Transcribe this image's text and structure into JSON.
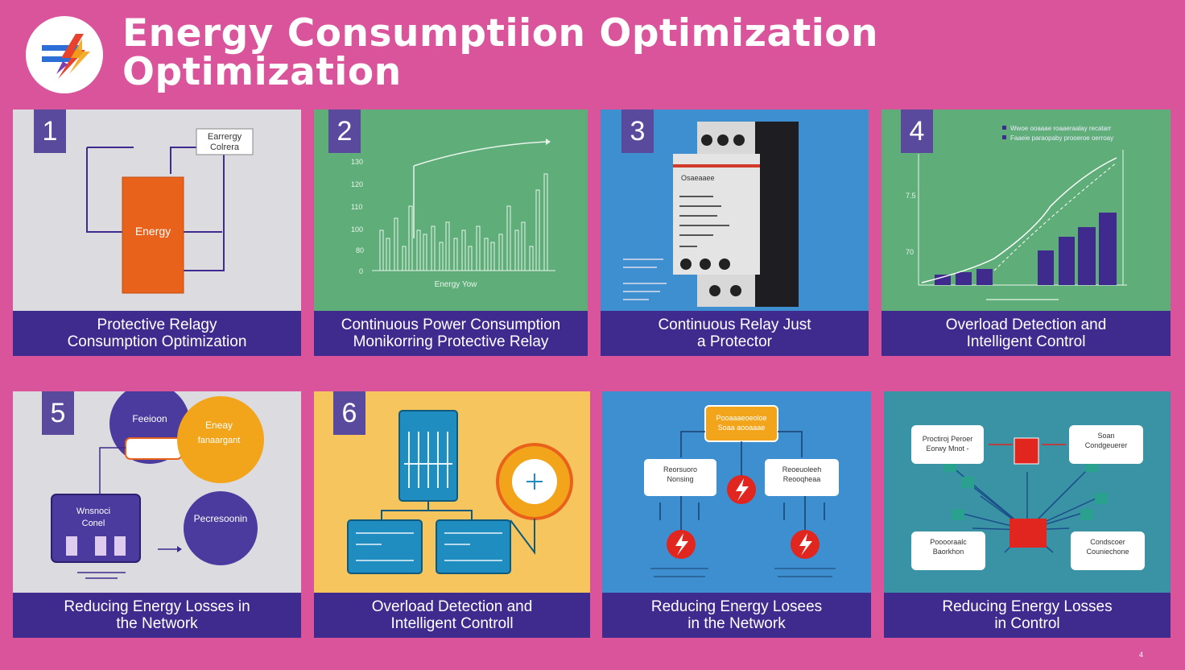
{
  "header": {
    "title_line1": "Energy Consumptiion Optimization",
    "title_line2": "Optimization"
  },
  "colors": {
    "background": "#d9549a",
    "caption_bar": "#3f2b8e",
    "card1": "#dcdbe0",
    "card2": "#5fad78",
    "card3": "#3d8fd0",
    "card4": "#5fad78",
    "card5": "#dcdbe0",
    "card6": "#f6c55d",
    "card7": "#3d8fd0",
    "card8": "#3a93a5"
  },
  "cards": [
    {
      "number": "1",
      "caption_line1": "Protective Relagy",
      "caption_line2": "Consumption   Optimization",
      "block_label": "Energy",
      "callout_line1": "Earrergy",
      "callout_line2": "Colrera",
      "icon": "battery-block-icon"
    },
    {
      "number": "2",
      "caption_line1": "Continuous Power Consumption",
      "caption_line2": "Monikorring Protective Relay",
      "axis_label": "Energy Yow",
      "icon": "bar-chart-icon"
    },
    {
      "number": "3",
      "caption_line1": "Continuous Relay Just",
      "caption_line2": "a Protector",
      "device_label": "Osaeaaee",
      "icon": "relay-device-icon"
    },
    {
      "number": "4",
      "caption_line1": "Overload Detection and",
      "caption_line2": "Intelligent Control",
      "legend1": "Wwoe ooaaae roaaeraalay recatarr",
      "legend2": "Faaeie paraopaby prooeroe oerroay",
      "icon": "trend-chart-icon"
    },
    {
      "number": "5",
      "caption_line1": "Reducing Energy Losses in",
      "caption_line2": "the Network",
      "bubble1": "Feeioon",
      "bubble2_line1": "Eneay",
      "bubble2_line2": "fanaargant",
      "bubble3": "Pecresoonin",
      "box_line1": "Wnsnoci",
      "box_line2": "Conel",
      "icon": "network-diagram-icon"
    },
    {
      "number": "6",
      "caption_line1": "Overload Detection  and",
      "caption_line2": "Intelligent Controll",
      "icon": "circuit-panel-icon"
    },
    {
      "number": "",
      "caption_line1": "Reducing Energy Losees",
      "caption_line2": "in the Network",
      "top_box_line1": "Pooaaaeoeoloe",
      "top_box_line2": "Soaa aooaaae",
      "left_box_line1": "Reorsuoro",
      "left_box_line2": "Nonsing",
      "right_box_line1": "Reoeuoleeh",
      "right_box_line2": "Reooqheaa",
      "icon": "lightning-flow-icon"
    },
    {
      "number": "",
      "caption_line1": "Reducing Energy Losses",
      "caption_line2": "in Control",
      "box_tl_line1": "Proctiroj Peroer",
      "box_tl_line2": "Eorwy Mnot -",
      "box_tr_line1": "Soan",
      "box_tr_line2": "Condgeuerer",
      "box_bl_line1": "Pooooraalc",
      "box_bl_line2": "Baorkhon",
      "box_br_line1": "Condscoer",
      "box_br_line2": "Couniechone",
      "icon": "hub-network-icon"
    }
  ],
  "page_number": "4"
}
